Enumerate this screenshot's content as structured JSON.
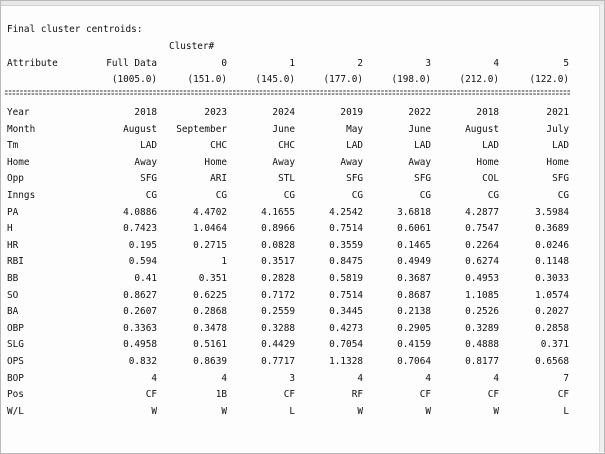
{
  "output": {
    "heading": "Final cluster centroids:",
    "cluster_label": "Cluster#",
    "attribute_header": "Attribute",
    "columns": [
      {
        "label": "Full Data",
        "count": "(1005.0)"
      },
      {
        "label": "0",
        "count": "(151.0)"
      },
      {
        "label": "1",
        "count": "(145.0)"
      },
      {
        "label": "2",
        "count": "(177.0)"
      },
      {
        "label": "3",
        "count": "(198.0)"
      },
      {
        "label": "4",
        "count": "(212.0)"
      },
      {
        "label": "5",
        "count": "(122.0)"
      }
    ],
    "separator": "==============================================================================",
    "rows": [
      {
        "attr": "Year",
        "values": [
          "2018",
          "2023",
          "2024",
          "2019",
          "2022",
          "2018",
          "2021"
        ]
      },
      {
        "attr": "Month",
        "values": [
          "August",
          "September",
          "June",
          "May",
          "June",
          "August",
          "July"
        ]
      },
      {
        "attr": "Tm",
        "values": [
          "LAD",
          "CHC",
          "CHC",
          "LAD",
          "LAD",
          "LAD",
          "LAD"
        ]
      },
      {
        "attr": "Home",
        "values": [
          "Away",
          "Home",
          "Away",
          "Away",
          "Away",
          "Home",
          "Home"
        ]
      },
      {
        "attr": "Opp",
        "values": [
          "SFG",
          "ARI",
          "STL",
          "SFG",
          "SFG",
          "COL",
          "SFG"
        ]
      },
      {
        "attr": "Inngs",
        "values": [
          "CG",
          "CG",
          "CG",
          "CG",
          "CG",
          "CG",
          "CG"
        ]
      },
      {
        "attr": "PA",
        "values": [
          "4.0886",
          "4.4702",
          "4.1655",
          "4.2542",
          "3.6818",
          "4.2877",
          "3.5984"
        ]
      },
      {
        "attr": "H",
        "values": [
          "0.7423",
          "1.0464",
          "0.8966",
          "0.7514",
          "0.6061",
          "0.7547",
          "0.3689"
        ]
      },
      {
        "attr": "HR",
        "values": [
          "0.195",
          "0.2715",
          "0.0828",
          "0.3559",
          "0.1465",
          "0.2264",
          "0.0246"
        ]
      },
      {
        "attr": "RBI",
        "values": [
          "0.594",
          "1",
          "0.3517",
          "0.8475",
          "0.4949",
          "0.6274",
          "0.1148"
        ]
      },
      {
        "attr": "BB",
        "values": [
          "0.41",
          "0.351",
          "0.2828",
          "0.5819",
          "0.3687",
          "0.4953",
          "0.3033"
        ]
      },
      {
        "attr": "SO",
        "values": [
          "0.8627",
          "0.6225",
          "0.7172",
          "0.7514",
          "0.8687",
          "1.1085",
          "1.0574"
        ]
      },
      {
        "attr": "BA",
        "values": [
          "0.2607",
          "0.2868",
          "0.2559",
          "0.3445",
          "0.2138",
          "0.2526",
          "0.2027"
        ]
      },
      {
        "attr": "OBP",
        "values": [
          "0.3363",
          "0.3478",
          "0.3288",
          "0.4273",
          "0.2905",
          "0.3289",
          "0.2858"
        ]
      },
      {
        "attr": "SLG",
        "values": [
          "0.4958",
          "0.5161",
          "0.4429",
          "0.7054",
          "0.4159",
          "0.4888",
          "0.371"
        ]
      },
      {
        "attr": "OPS",
        "values": [
          "0.832",
          "0.8639",
          "0.7717",
          "1.1328",
          "0.7064",
          "0.8177",
          "0.6568"
        ]
      },
      {
        "attr": "BOP",
        "values": [
          "4",
          "4",
          "3",
          "4",
          "4",
          "4",
          "7"
        ]
      },
      {
        "attr": "Pos",
        "values": [
          "CF",
          "1B",
          "CF",
          "RF",
          "CF",
          "CF",
          "CF"
        ]
      },
      {
        "attr": "W/L",
        "values": [
          "W",
          "W",
          "L",
          "W",
          "W",
          "W",
          "L"
        ]
      }
    ]
  }
}
